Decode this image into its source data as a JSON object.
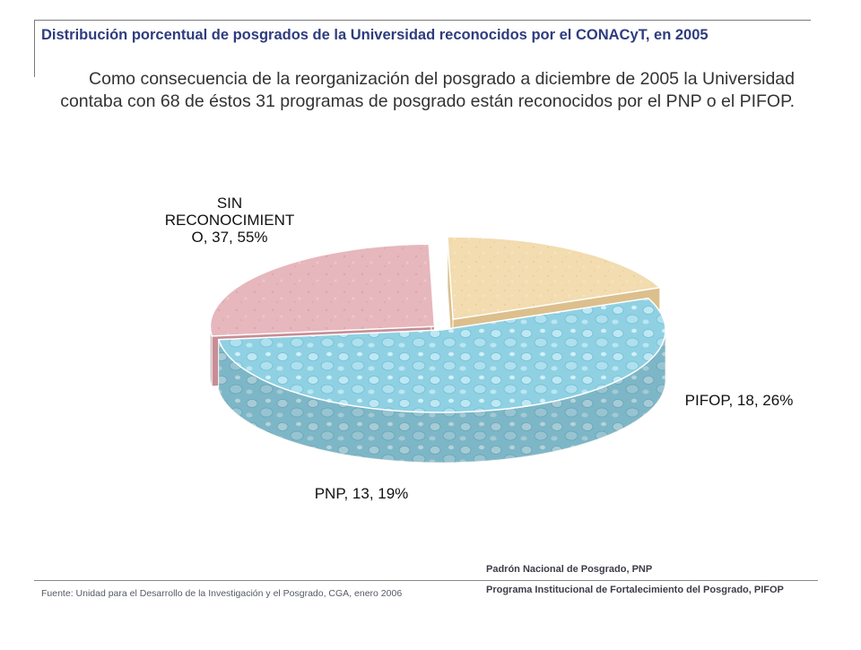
{
  "header": {
    "title": "Distribución porcentual de posgrados de la Universidad reconocidos por el CONACyT, en 2005",
    "description": "Como consecuencia de la reorganización del posgrado a diciembre de 2005 la Universidad contaba con 68 de éstos 31 programas de posgrado están reconocidos por el PNP o el PIFOP."
  },
  "chart_data": {
    "type": "pie",
    "style": "3d-exploded",
    "slices": [
      {
        "label_lines": [
          "SIN",
          "RECONOCIMIENT",
          "O, 37, 55%"
        ],
        "category": "SIN RECONOCIMIENTO",
        "value": 37,
        "percent": 55,
        "color": "#8fd1e3"
      },
      {
        "label_lines": [
          "PIFOP, 18, 26%"
        ],
        "category": "PIFOP",
        "value": 18,
        "percent": 26,
        "color": "#e6b7bc"
      },
      {
        "label_lines": [
          "PNP, 13, 19%"
        ],
        "category": "PNP",
        "value": 13,
        "percent": 19,
        "color": "#f2dcb0"
      }
    ]
  },
  "footer": {
    "source": "Fuente: Unidad para el Desarrollo de la Investigación y el Posgrado, CGA, enero 2006",
    "legend_pnp": "Padrón Nacional de Posgrado, PNP",
    "legend_pifop": "Programa Institucional de Fortalecimiento del Posgrado, PIFOP"
  }
}
